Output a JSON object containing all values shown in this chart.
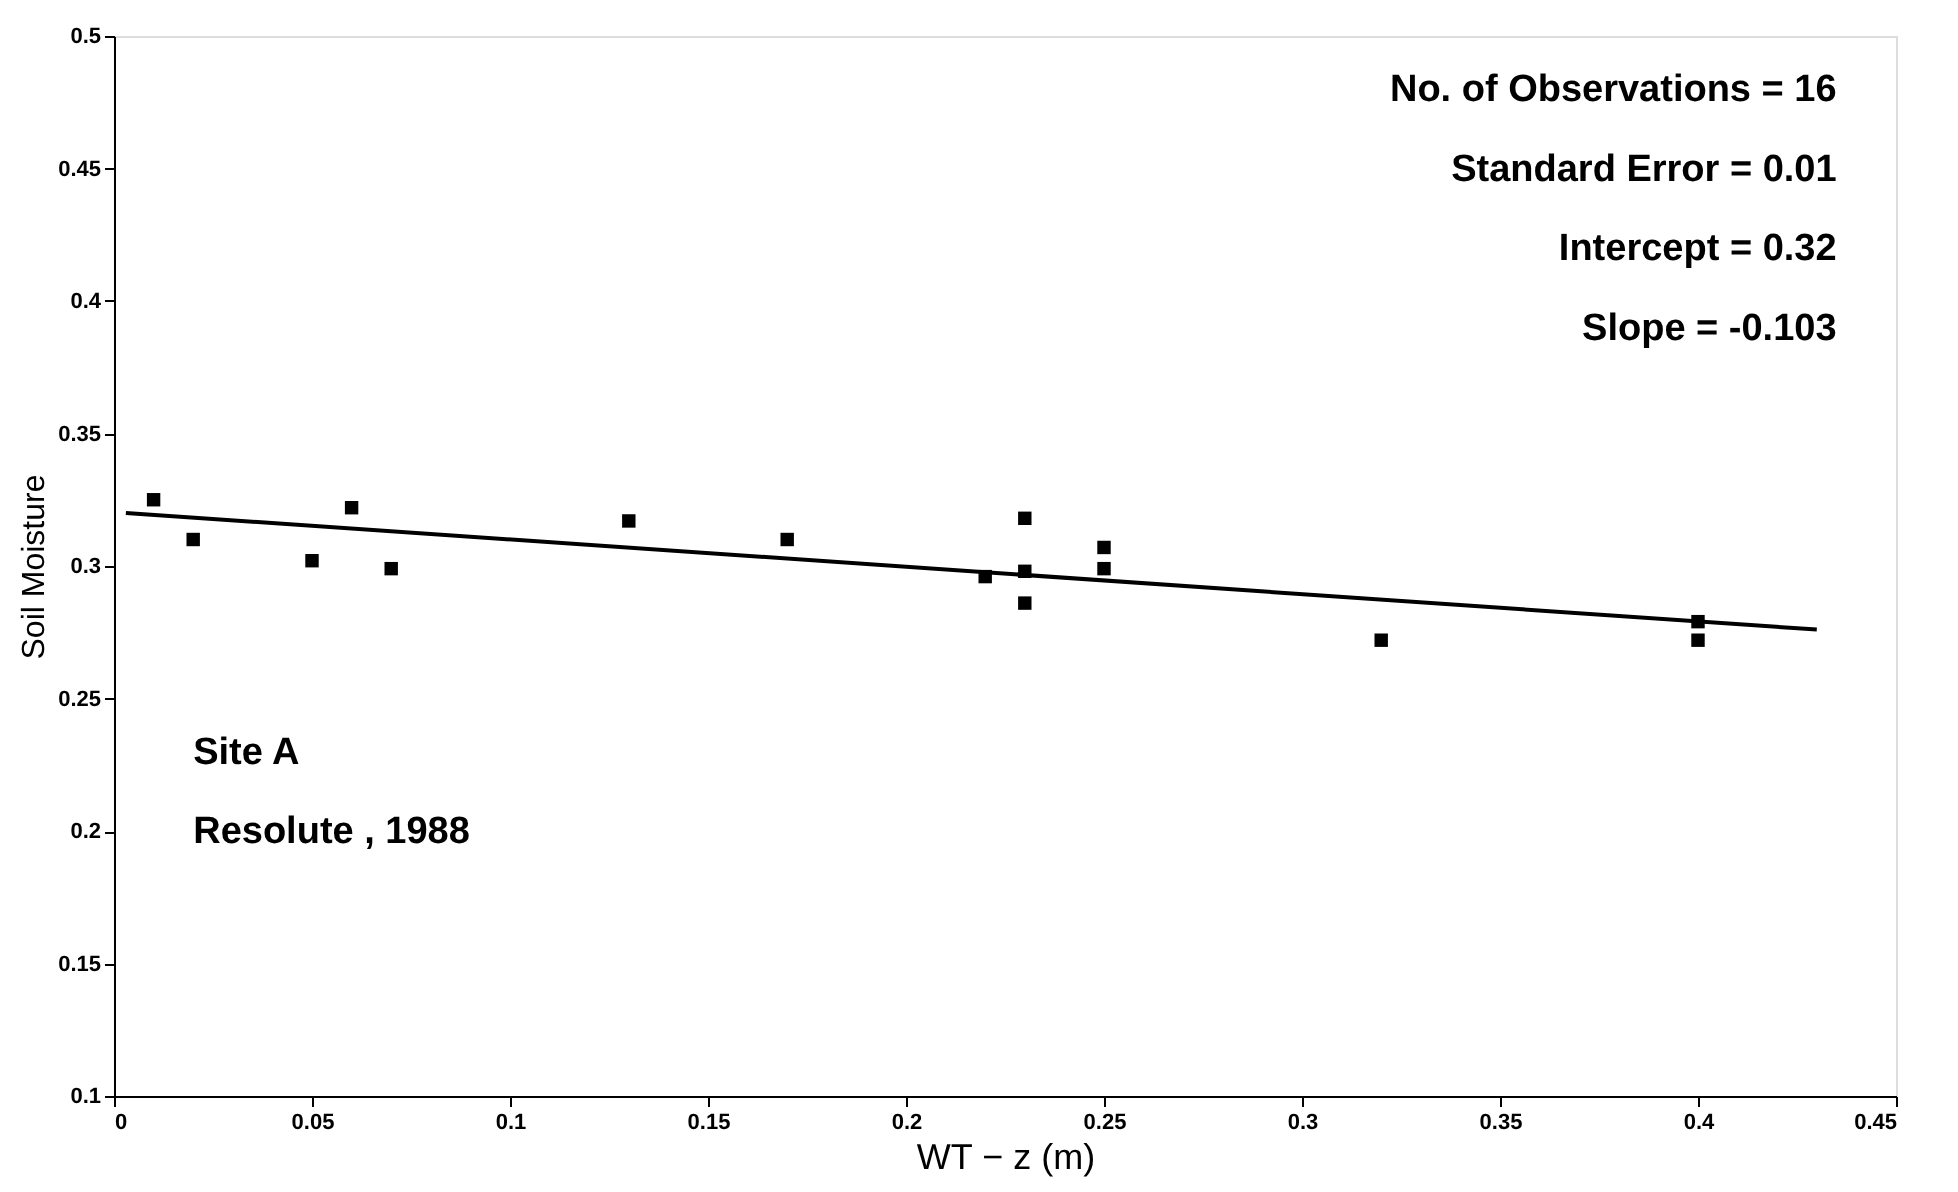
{
  "chart_data": {
    "type": "scatter",
    "xlabel": "WT − z  (m)",
    "ylabel": "Soil Moisture",
    "x": [
      0.01,
      0.02,
      0.05,
      0.06,
      0.07,
      0.13,
      0.17,
      0.22,
      0.23,
      0.23,
      0.23,
      0.25,
      0.25,
      0.32,
      0.4,
      0.4
    ],
    "series": [
      {
        "type": "scatter",
        "color": "#000000",
        "marker": "square",
        "values": [
          0.325,
          0.31,
          0.302,
          0.322,
          0.299,
          0.317,
          0.31,
          0.296,
          0.318,
          0.298,
          0.286,
          0.307,
          0.299,
          0.272,
          0.279,
          0.272
        ]
      },
      {
        "type": "line",
        "color": "#000000",
        "line_style": "solid",
        "marker": "none",
        "x": [
          0.003,
          0.43
        ],
        "values": [
          0.32,
          0.276
        ]
      }
    ],
    "annotations": [
      "No. of Observations  =  16",
      "Standard Error  =  0.01",
      "Intercept  =  0.32",
      "Slope  =  -0.103",
      "Site  A",
      "Resolute ,  1988"
    ],
    "xlim": [
      0,
      0.45
    ],
    "xticks": [
      0,
      0.05,
      0.1,
      0.15,
      0.2,
      0.25,
      0.3,
      0.35,
      0.4,
      0.45
    ],
    "ylim": [
      0.1,
      0.5
    ],
    "yticks": [
      0.1,
      0.15,
      0.2,
      0.25,
      0.3,
      0.35,
      0.4,
      0.45,
      0.5
    ],
    "grid": false
  }
}
